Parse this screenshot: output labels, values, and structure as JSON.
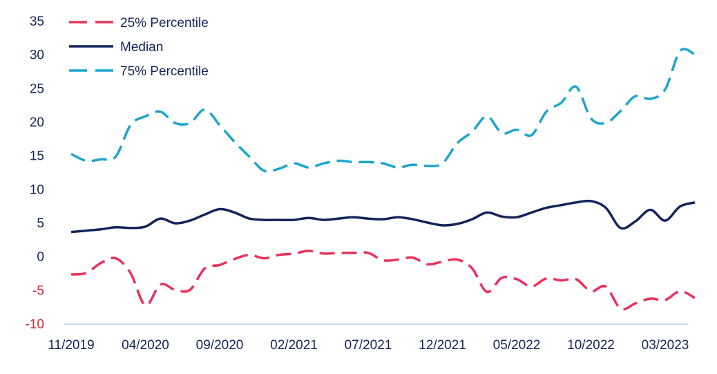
{
  "chart_data": {
    "type": "line",
    "title": "",
    "xlabel": "",
    "ylabel": "",
    "x_start": "2019-11",
    "x_end": "2023-05",
    "ylim": [
      -10,
      35
    ],
    "yticks": [
      {
        "value": 35,
        "label": "35"
      },
      {
        "value": 30,
        "label": "30"
      },
      {
        "value": 25,
        "label": "25"
      },
      {
        "value": 20,
        "label": "20"
      },
      {
        "value": 15,
        "label": "15"
      },
      {
        "value": 10,
        "label": "10"
      },
      {
        "value": 5,
        "label": "5"
      },
      {
        "value": 0,
        "label": "0"
      },
      {
        "value": -5,
        "label": "-5"
      },
      {
        "value": -10,
        "label": "-10"
      }
    ],
    "xticks": [
      {
        "value": "2019-11",
        "label": "11/2019"
      },
      {
        "value": "2020-04",
        "label": "04/2020"
      },
      {
        "value": "2020-09",
        "label": "09/2020"
      },
      {
        "value": "2021-02",
        "label": "02/2021"
      },
      {
        "value": "2021-07",
        "label": "07/2021"
      },
      {
        "value": "2021-12",
        "label": "12/2021"
      },
      {
        "value": "2022-05",
        "label": "05/2022"
      },
      {
        "value": "2022-10",
        "label": "10/2022"
      },
      {
        "value": "2023-03",
        "label": "03/2023"
      }
    ],
    "grid": false,
    "legend_position": "top-left",
    "colors": {
      "p25": "#e8325a",
      "median": "#14245a",
      "p75": "#1ea5cd",
      "axis_line": "#a6cfe2",
      "ytick_positive": "#14245a",
      "ytick_negative": "#d9252e",
      "xtick": "#14245a"
    },
    "series": [
      {
        "name": "25% Percentile",
        "color": "#e8325a",
        "dashed": true,
        "points": [
          [
            "2019-11",
            -2.7
          ],
          [
            "2019-12",
            -2.5
          ],
          [
            "2020-01",
            -1.0
          ],
          [
            "2020-02",
            -0.3
          ],
          [
            "2020-03",
            -2.5
          ],
          [
            "2020-04",
            -7.3
          ],
          [
            "2020-05",
            -4.2
          ],
          [
            "2020-06",
            -5.0
          ],
          [
            "2020-07",
            -5.0
          ],
          [
            "2020-08",
            -1.8
          ],
          [
            "2020-09",
            -1.3
          ],
          [
            "2020-10",
            -0.4
          ],
          [
            "2020-11",
            0.2
          ],
          [
            "2020-12",
            -0.3
          ],
          [
            "2021-01",
            0.2
          ],
          [
            "2021-02",
            0.4
          ],
          [
            "2021-03",
            0.8
          ],
          [
            "2021-04",
            0.4
          ],
          [
            "2021-05",
            0.5
          ],
          [
            "2021-06",
            0.5
          ],
          [
            "2021-07",
            0.5
          ],
          [
            "2021-08",
            -0.6
          ],
          [
            "2021-09",
            -0.5
          ],
          [
            "2021-10",
            -0.2
          ],
          [
            "2021-11",
            -1.2
          ],
          [
            "2021-12",
            -0.8
          ],
          [
            "2022-01",
            -0.5
          ],
          [
            "2022-02",
            -1.8
          ],
          [
            "2022-03",
            -5.3
          ],
          [
            "2022-04",
            -3.2
          ],
          [
            "2022-05",
            -3.4
          ],
          [
            "2022-06",
            -4.5
          ],
          [
            "2022-07",
            -3.3
          ],
          [
            "2022-08",
            -3.6
          ],
          [
            "2022-09",
            -3.4
          ],
          [
            "2022-10",
            -5.2
          ],
          [
            "2022-11",
            -4.5
          ],
          [
            "2022-12",
            -7.8
          ],
          [
            "2023-01",
            -7.0
          ],
          [
            "2023-02",
            -6.3
          ],
          [
            "2023-03",
            -6.5
          ],
          [
            "2023-04",
            -5.2
          ],
          [
            "2023-05",
            -6.2
          ]
        ]
      },
      {
        "name": "Median",
        "color": "#14245a",
        "dashed": false,
        "points": [
          [
            "2019-11",
            3.6
          ],
          [
            "2019-12",
            3.8
          ],
          [
            "2020-01",
            4.0
          ],
          [
            "2020-02",
            4.3
          ],
          [
            "2020-03",
            4.2
          ],
          [
            "2020-04",
            4.4
          ],
          [
            "2020-05",
            5.6
          ],
          [
            "2020-06",
            4.9
          ],
          [
            "2020-07",
            5.3
          ],
          [
            "2020-08",
            6.2
          ],
          [
            "2020-09",
            7.0
          ],
          [
            "2020-10",
            6.5
          ],
          [
            "2020-11",
            5.6
          ],
          [
            "2020-12",
            5.4
          ],
          [
            "2021-01",
            5.4
          ],
          [
            "2021-02",
            5.4
          ],
          [
            "2021-03",
            5.7
          ],
          [
            "2021-04",
            5.4
          ],
          [
            "2021-05",
            5.6
          ],
          [
            "2021-06",
            5.8
          ],
          [
            "2021-07",
            5.6
          ],
          [
            "2021-08",
            5.5
          ],
          [
            "2021-09",
            5.8
          ],
          [
            "2021-10",
            5.5
          ],
          [
            "2021-11",
            5.0
          ],
          [
            "2021-12",
            4.6
          ],
          [
            "2022-01",
            4.8
          ],
          [
            "2022-02",
            5.5
          ],
          [
            "2022-03",
            6.5
          ],
          [
            "2022-04",
            5.9
          ],
          [
            "2022-05",
            5.8
          ],
          [
            "2022-06",
            6.5
          ],
          [
            "2022-07",
            7.2
          ],
          [
            "2022-08",
            7.6
          ],
          [
            "2022-09",
            8.0
          ],
          [
            "2022-10",
            8.2
          ],
          [
            "2022-11",
            7.2
          ],
          [
            "2022-12",
            4.2
          ],
          [
            "2023-01",
            5.2
          ],
          [
            "2023-02",
            6.9
          ],
          [
            "2023-03",
            5.3
          ],
          [
            "2023-04",
            7.4
          ],
          [
            "2023-05",
            8.0
          ]
        ]
      },
      {
        "name": "75% Percentile",
        "color": "#1ea5cd",
        "dashed": true,
        "points": [
          [
            "2019-11",
            15.2
          ],
          [
            "2019-12",
            14.2
          ],
          [
            "2020-01",
            14.4
          ],
          [
            "2020-02",
            14.8
          ],
          [
            "2020-03",
            19.5
          ],
          [
            "2020-04",
            20.8
          ],
          [
            "2020-05",
            21.5
          ],
          [
            "2020-06",
            19.8
          ],
          [
            "2020-07",
            19.8
          ],
          [
            "2020-08",
            21.8
          ],
          [
            "2020-09",
            19.5
          ],
          [
            "2020-10",
            17.0
          ],
          [
            "2020-11",
            14.8
          ],
          [
            "2020-12",
            12.7
          ],
          [
            "2021-01",
            13.0
          ],
          [
            "2021-02",
            13.8
          ],
          [
            "2021-03",
            13.2
          ],
          [
            "2021-04",
            13.8
          ],
          [
            "2021-05",
            14.2
          ],
          [
            "2021-06",
            14.0
          ],
          [
            "2021-07",
            14.0
          ],
          [
            "2021-08",
            13.8
          ],
          [
            "2021-09",
            13.2
          ],
          [
            "2021-10",
            13.6
          ],
          [
            "2021-11",
            13.4
          ],
          [
            "2021-12",
            13.8
          ],
          [
            "2022-01",
            16.8
          ],
          [
            "2022-02",
            18.5
          ],
          [
            "2022-03",
            20.8
          ],
          [
            "2022-04",
            18.3
          ],
          [
            "2022-05",
            18.8
          ],
          [
            "2022-06",
            18.0
          ],
          [
            "2022-07",
            21.5
          ],
          [
            "2022-08",
            22.8
          ],
          [
            "2022-09",
            25.2
          ],
          [
            "2022-10",
            20.5
          ],
          [
            "2022-11",
            19.8
          ],
          [
            "2022-12",
            21.6
          ],
          [
            "2023-01",
            23.8
          ],
          [
            "2023-02",
            23.4
          ],
          [
            "2023-03",
            24.8
          ],
          [
            "2023-04",
            30.5
          ],
          [
            "2023-05",
            30.0
          ]
        ]
      }
    ]
  }
}
